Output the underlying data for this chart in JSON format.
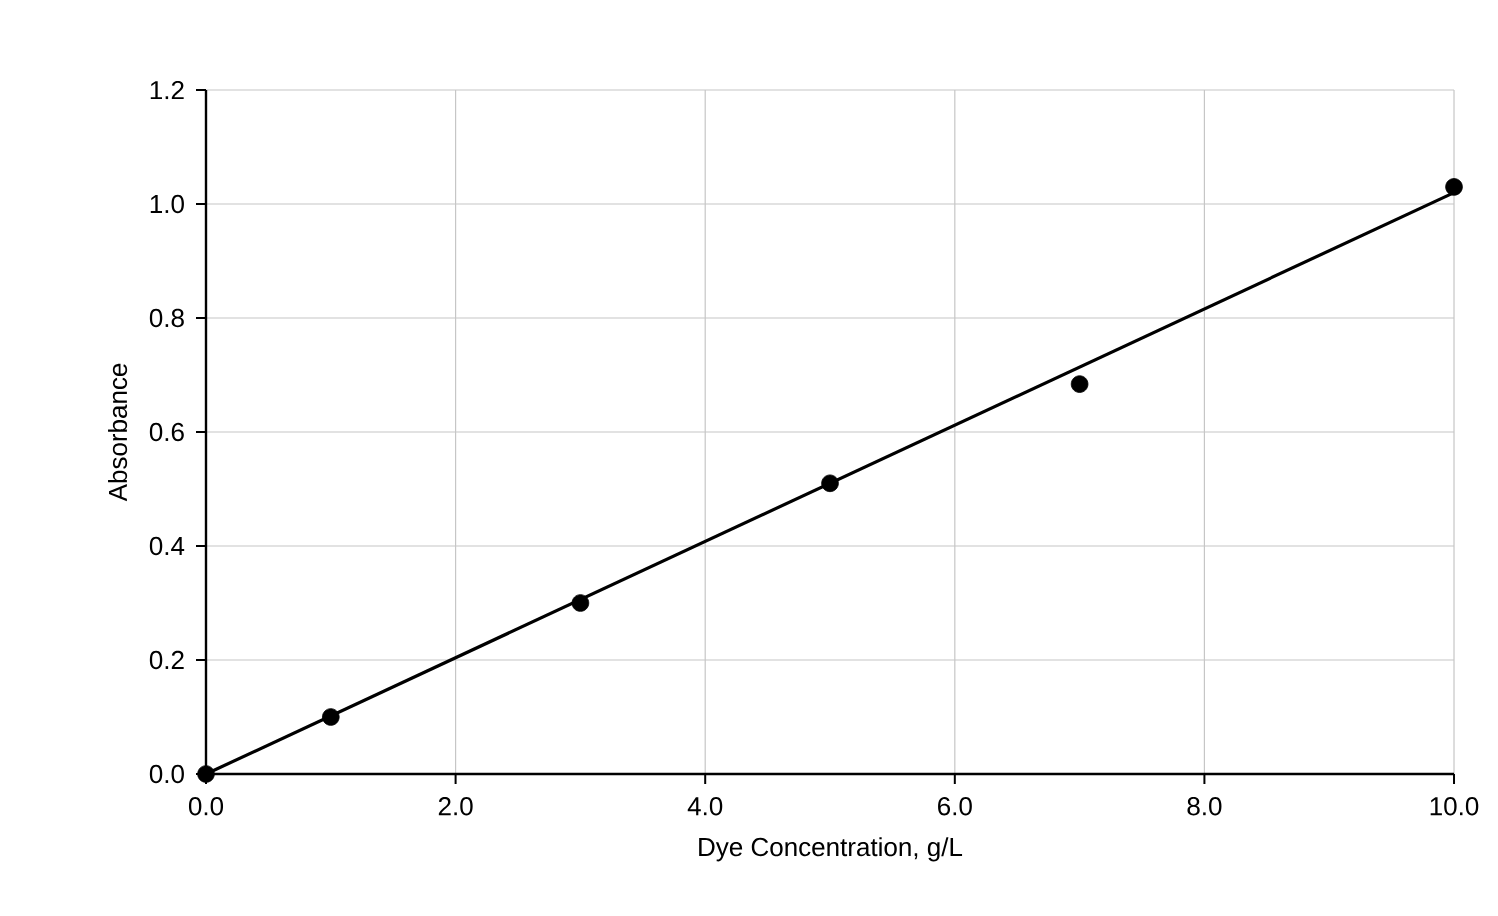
{
  "chart_data": {
    "type": "scatter",
    "xlabel": "Dye Concentration, g/L",
    "ylabel": "Absorbance",
    "x": [
      0,
      1,
      3,
      5,
      7,
      10
    ],
    "series": [
      {
        "color": "#000000",
        "marker": "circle",
        "values": [
          0,
          0.1,
          0.3,
          0.51,
          0.684,
          1.03
        ]
      },
      {
        "type": "line",
        "color": "#000000",
        "marker": "none",
        "line_style": "solid",
        "x": [
          0,
          10
        ],
        "values": [
          0,
          1.02
        ]
      }
    ],
    "xlim": [
      0,
      10
    ],
    "ylim": [
      0,
      1.2
    ],
    "xticks": [
      {
        "value": 0,
        "label": "0.0"
      },
      {
        "value": 2,
        "label": "2.0"
      },
      {
        "value": 4,
        "label": "4.0"
      },
      {
        "value": 6,
        "label": "6.0"
      },
      {
        "value": 8,
        "label": "8.0"
      },
      {
        "value": 10,
        "label": "10.0"
      }
    ],
    "yticks": [
      {
        "value": 0,
        "label": "0.0"
      },
      {
        "value": 0.2,
        "label": "0.2"
      },
      {
        "value": 0.4,
        "label": "0.4"
      },
      {
        "value": 0.6,
        "label": "0.6"
      },
      {
        "value": 0.8,
        "label": "0.8"
      },
      {
        "value": 1.0,
        "label": "1.0"
      },
      {
        "value": 1.2,
        "label": "1.2"
      }
    ],
    "grid": true
  }
}
